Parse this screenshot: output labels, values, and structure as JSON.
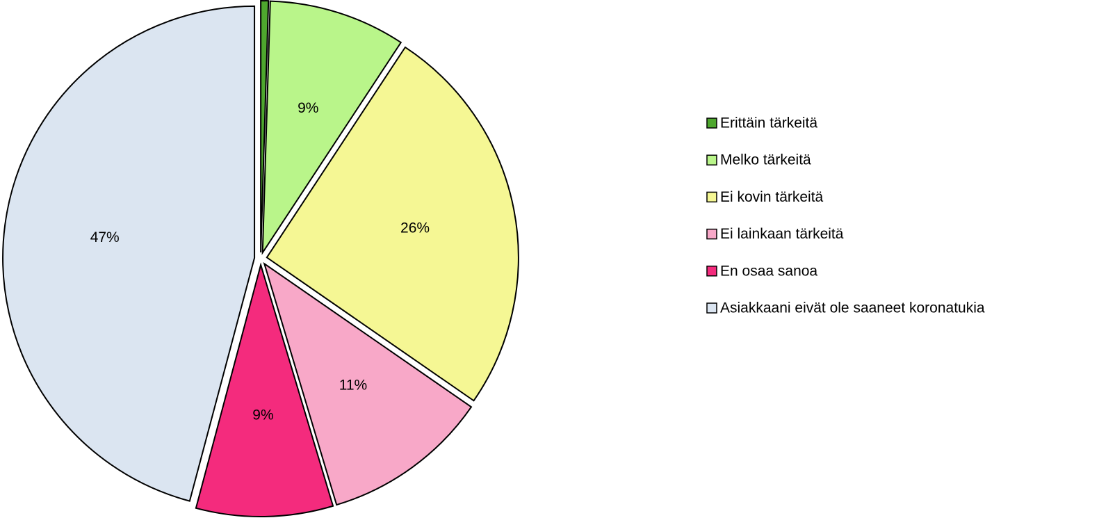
{
  "chart_data": {
    "type": "pie",
    "categories": [
      "Erittäin tärkeitä",
      "Melko tärkeitä",
      "Ei kovin tärkeitä",
      "Ei lainkaan tärkeitä",
      "En osaa sanoa",
      "Asiakkaani eivät ole saaneet koronatukia"
    ],
    "values": [
      0.5,
      9,
      26,
      11,
      9,
      47
    ],
    "value_labels": [
      null,
      "9%",
      "26%",
      "11%",
      "9%",
      "47%"
    ],
    "colors": [
      "#4ea72e",
      "#b9f58a",
      "#f5f794",
      "#f8a8c8",
      "#f42b7d",
      "#dbe5f1"
    ],
    "legend": "right"
  }
}
